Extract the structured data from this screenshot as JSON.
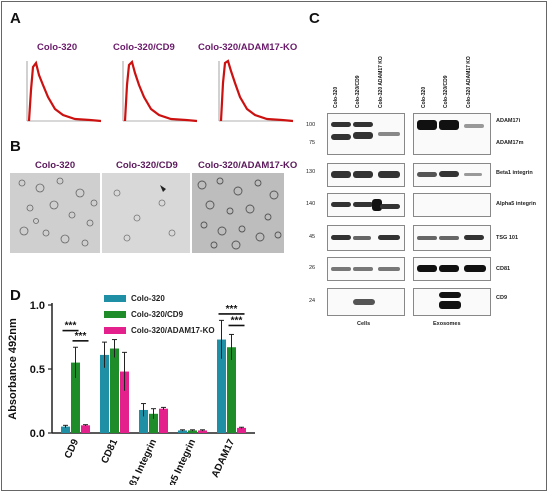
{
  "panel_letters": {
    "a": "A",
    "b": "B",
    "c": "C",
    "d": "D"
  },
  "nta": {
    "titles": [
      "Colo-320",
      "Colo-320/CD9",
      "Colo-320/ADAM17-KO"
    ],
    "series_color": "#cc1111"
  },
  "tem": {
    "titles": [
      "Colo-320",
      "Colo-320/CD9",
      "Colo-320/ADAM17-KO"
    ]
  },
  "blots": {
    "lanes": [
      "Colo-320",
      "Colo-320/CD9",
      "Colo-320 ADAM17 KO"
    ],
    "mw_markers": [
      "100",
      "75",
      "130",
      "140",
      "45",
      "26",
      "24"
    ],
    "labels": [
      "ADAM17i",
      "ADAM17m",
      "Beta1 integrin",
      "Alpha5 integrin",
      "TSG 101",
      "CD81",
      "CD9"
    ],
    "group_labels": [
      "Cells",
      "Exosomes"
    ]
  },
  "chart_data": {
    "type": "bar",
    "categories": [
      "CD9",
      "CD81",
      "β1 Integrin",
      "α5 Integrin",
      "ADAM17"
    ],
    "series": [
      {
        "name": "Colo-320",
        "color": "#1f8fa6",
        "values": [
          0.05,
          0.61,
          0.18,
          0.02,
          0.73
        ],
        "errors": [
          0.01,
          0.1,
          0.05,
          0.005,
          0.15
        ]
      },
      {
        "name": "Colo-320/CD9",
        "color": "#1e8c28",
        "values": [
          0.55,
          0.66,
          0.15,
          0.02,
          0.67
        ],
        "errors": [
          0.12,
          0.07,
          0.04,
          0.005,
          0.1
        ]
      },
      {
        "name": "Colo-320/ADAM17-KO",
        "color": "#e4208c",
        "values": [
          0.06,
          0.48,
          0.19,
          0.02,
          0.04
        ],
        "errors": [
          0.005,
          0.15,
          0.01,
          0.005,
          0.005
        ]
      }
    ],
    "ylabel": "Absorbance 492nm",
    "ylim": [
      0,
      1.0
    ],
    "yticks": [
      "0.0",
      "0.5",
      "1.0"
    ],
    "significance": [
      "***",
      "***",
      "***",
      "***"
    ],
    "legend_position": "top-center"
  }
}
